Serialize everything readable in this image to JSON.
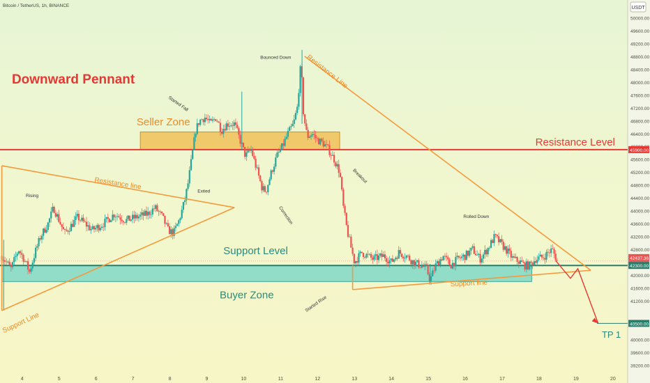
{
  "header": {
    "symbol": "Bitcoin / TetherUS, 1h, BINANCE",
    "currency_label": "USDT"
  },
  "colors": {
    "background_top": "#e7f5d5",
    "background_bottom": "#f7f6c6",
    "bull_candle": "#26a69a",
    "bear_candle": "#ef5350",
    "resistance_red": "#e53935",
    "pattern_orange": "#f59a3c",
    "seller_zone_fill": "#f0b94a",
    "buyer_zone_fill": "#7fd8c8",
    "support_level_green": "#2a7d6b",
    "annotation_red": "#e53935",
    "annotation_orange": "#f08a24",
    "annotation_teal": "#2a8b7a",
    "arrow_red": "#e53935"
  },
  "chart_data": {
    "type": "candlestick",
    "instrument": "Bitcoin / TetherUS",
    "interval": "1h",
    "exchange": "BINANCE",
    "x_axis": {
      "unit": "day",
      "range": [
        3.4,
        20.4
      ],
      "tick_labels": [
        "4",
        "5",
        "6",
        "7",
        "8",
        "9",
        "10",
        "11",
        "12",
        "13",
        "14",
        "15",
        "16",
        "17",
        "18",
        "19",
        "20"
      ]
    },
    "y_axis": {
      "unit": "USDT",
      "range": [
        38950,
        50550
      ],
      "position": "right",
      "tick_labels": [
        "39200.00",
        "39600.00",
        "40000.00",
        "41200.00",
        "41600.00",
        "42000.00",
        "42400.00",
        "42800.00",
        "43200.00",
        "43600.00",
        "44000.00",
        "44400.00",
        "44800.00",
        "45200.00",
        "45600.00",
        "46000.00",
        "46400.00",
        "46800.00",
        "47200.00",
        "47600.00",
        "48000.00",
        "48400.00",
        "48800.00",
        "49200.00",
        "49600.00",
        "50000.00"
      ]
    },
    "price_path": [
      [
        3.45,
        42600
      ],
      [
        3.7,
        42200
      ],
      [
        3.9,
        42800
      ],
      [
        4.05,
        42500
      ],
      [
        4.2,
        42100
      ],
      [
        4.35,
        42700
      ],
      [
        4.5,
        43200
      ],
      [
        4.7,
        43600
      ],
      [
        4.85,
        44100
      ],
      [
        5.0,
        43700
      ],
      [
        5.15,
        43300
      ],
      [
        5.3,
        43500
      ],
      [
        5.5,
        43800
      ],
      [
        5.7,
        43600
      ],
      [
        5.9,
        43400
      ],
      [
        6.2,
        43600
      ],
      [
        6.5,
        43900
      ],
      [
        6.8,
        43700
      ],
      [
        7.1,
        43800
      ],
      [
        7.4,
        43900
      ],
      [
        7.6,
        44100
      ],
      [
        7.8,
        43800
      ],
      [
        7.95,
        43400
      ],
      [
        8.1,
        43300
      ],
      [
        8.25,
        43700
      ],
      [
        8.4,
        44300
      ],
      [
        8.5,
        44900
      ],
      [
        8.6,
        45700
      ],
      [
        8.7,
        46500
      ],
      [
        8.8,
        46800
      ],
      [
        8.95,
        46900
      ],
      [
        9.1,
        46700
      ],
      [
        9.25,
        46900
      ],
      [
        9.4,
        46500
      ],
      [
        9.55,
        46700
      ],
      [
        9.75,
        46700
      ],
      [
        9.9,
        46200
      ],
      [
        10.05,
        45700
      ],
      [
        10.2,
        45900
      ],
      [
        10.35,
        45300
      ],
      [
        10.5,
        44700
      ],
      [
        10.6,
        44600
      ],
      [
        10.75,
        45200
      ],
      [
        10.9,
        45700
      ],
      [
        11.05,
        46000
      ],
      [
        11.2,
        46400
      ],
      [
        11.35,
        46700
      ],
      [
        11.45,
        47200
      ],
      [
        11.55,
        48600
      ],
      [
        11.62,
        47000
      ],
      [
        11.72,
        46300
      ],
      [
        11.85,
        46400
      ],
      [
        12.0,
        46200
      ],
      [
        12.15,
        46100
      ],
      [
        12.3,
        45900
      ],
      [
        12.45,
        45600
      ],
      [
        12.6,
        45200
      ],
      [
        12.7,
        44100
      ],
      [
        12.8,
        43400
      ],
      [
        12.9,
        42900
      ],
      [
        13.0,
        42400
      ],
      [
        13.2,
        42700
      ],
      [
        13.5,
        42500
      ],
      [
        13.8,
        42600
      ],
      [
        14.0,
        42400
      ],
      [
        14.2,
        42700
      ],
      [
        14.4,
        42600
      ],
      [
        14.6,
        42400
      ],
      [
        14.8,
        42300
      ],
      [
        14.95,
        42200
      ],
      [
        15.05,
        41850
      ],
      [
        15.2,
        42300
      ],
      [
        15.4,
        42600
      ],
      [
        15.6,
        42300
      ],
      [
        15.8,
        42500
      ],
      [
        16.0,
        42600
      ],
      [
        16.2,
        42800
      ],
      [
        16.4,
        42500
      ],
      [
        16.6,
        42800
      ],
      [
        16.8,
        43200
      ],
      [
        16.95,
        43000
      ],
      [
        17.1,
        42800
      ],
      [
        17.3,
        42500
      ],
      [
        17.5,
        42400
      ],
      [
        17.6,
        42300
      ],
      [
        17.75,
        42300
      ],
      [
        17.9,
        42500
      ],
      [
        18.1,
        42550
      ],
      [
        18.25,
        42700
      ],
      [
        18.35,
        42800
      ],
      [
        18.5,
        42430
      ]
    ],
    "levels": [
      {
        "name": "Resistance Level",
        "price": 45900,
        "price_label": "45900.00"
      },
      {
        "name": "Support Level",
        "price": 42300,
        "price_label": "42300.00"
      },
      {
        "name": "TP 1",
        "price": 40500,
        "price_label": "40500.00"
      },
      {
        "name": "current",
        "price": 42437,
        "price_label": "42437.36"
      }
    ],
    "price_tags": [
      "45900.00",
      "42437.36",
      "25:09",
      "42300.00",
      "40500.00"
    ],
    "zones": [
      {
        "name": "Seller Zone",
        "x": [
          7.2,
          12.6
        ],
        "y": [
          45900,
          46450
        ]
      },
      {
        "name": "Buyer Zone",
        "x": [
          3.45,
          17.8
        ],
        "y": [
          41800,
          42300
        ]
      }
    ],
    "trendlines": [
      {
        "name": "Resistance line",
        "points": [
          [
            3.45,
            45400
          ],
          [
            9.75,
            44100
          ]
        ]
      },
      {
        "name": "Support Line",
        "points": [
          [
            3.45,
            40900
          ],
          [
            9.75,
            44100
          ]
        ]
      },
      {
        "name": "Resistance Line",
        "points": [
          [
            11.65,
            48800
          ],
          [
            19.4,
            42150
          ]
        ]
      },
      {
        "name": "Support line",
        "points": [
          [
            12.95,
            41550
          ],
          [
            19.4,
            42150
          ]
        ]
      },
      {
        "name": "left pennant edge",
        "points": [
          [
            3.45,
            40900
          ],
          [
            3.45,
            45400
          ]
        ]
      },
      {
        "name": "right pennant edge",
        "points": [
          [
            12.95,
            41550
          ],
          [
            12.95,
            42300
          ]
        ]
      }
    ],
    "projection_path": [
      [
        18.45,
        42450
      ],
      [
        18.85,
        41900
      ],
      [
        19.05,
        42200
      ],
      [
        19.6,
        40500
      ]
    ],
    "annotations": {
      "pattern_title": "Downward Pennant",
      "seller_zone": "Seller Zone",
      "buyer_zone": "Buyer Zone",
      "resistance_level": "Resistance Level",
      "support_level": "Support Level",
      "resistance_line_left": "Resistance line",
      "support_line_left": "Support Line",
      "resistance_line_right": "Resistance Line",
      "support_line_right": "Support line",
      "tp1": "TP 1",
      "rising": "Rising",
      "exited": "Exited",
      "started_fall": "Started Fall",
      "bounced_down": "Bounced Down",
      "correction": "Correction",
      "breakout": "Breakout",
      "started_rise": "Started Rise",
      "rolled_down": "Rolled Down"
    }
  }
}
